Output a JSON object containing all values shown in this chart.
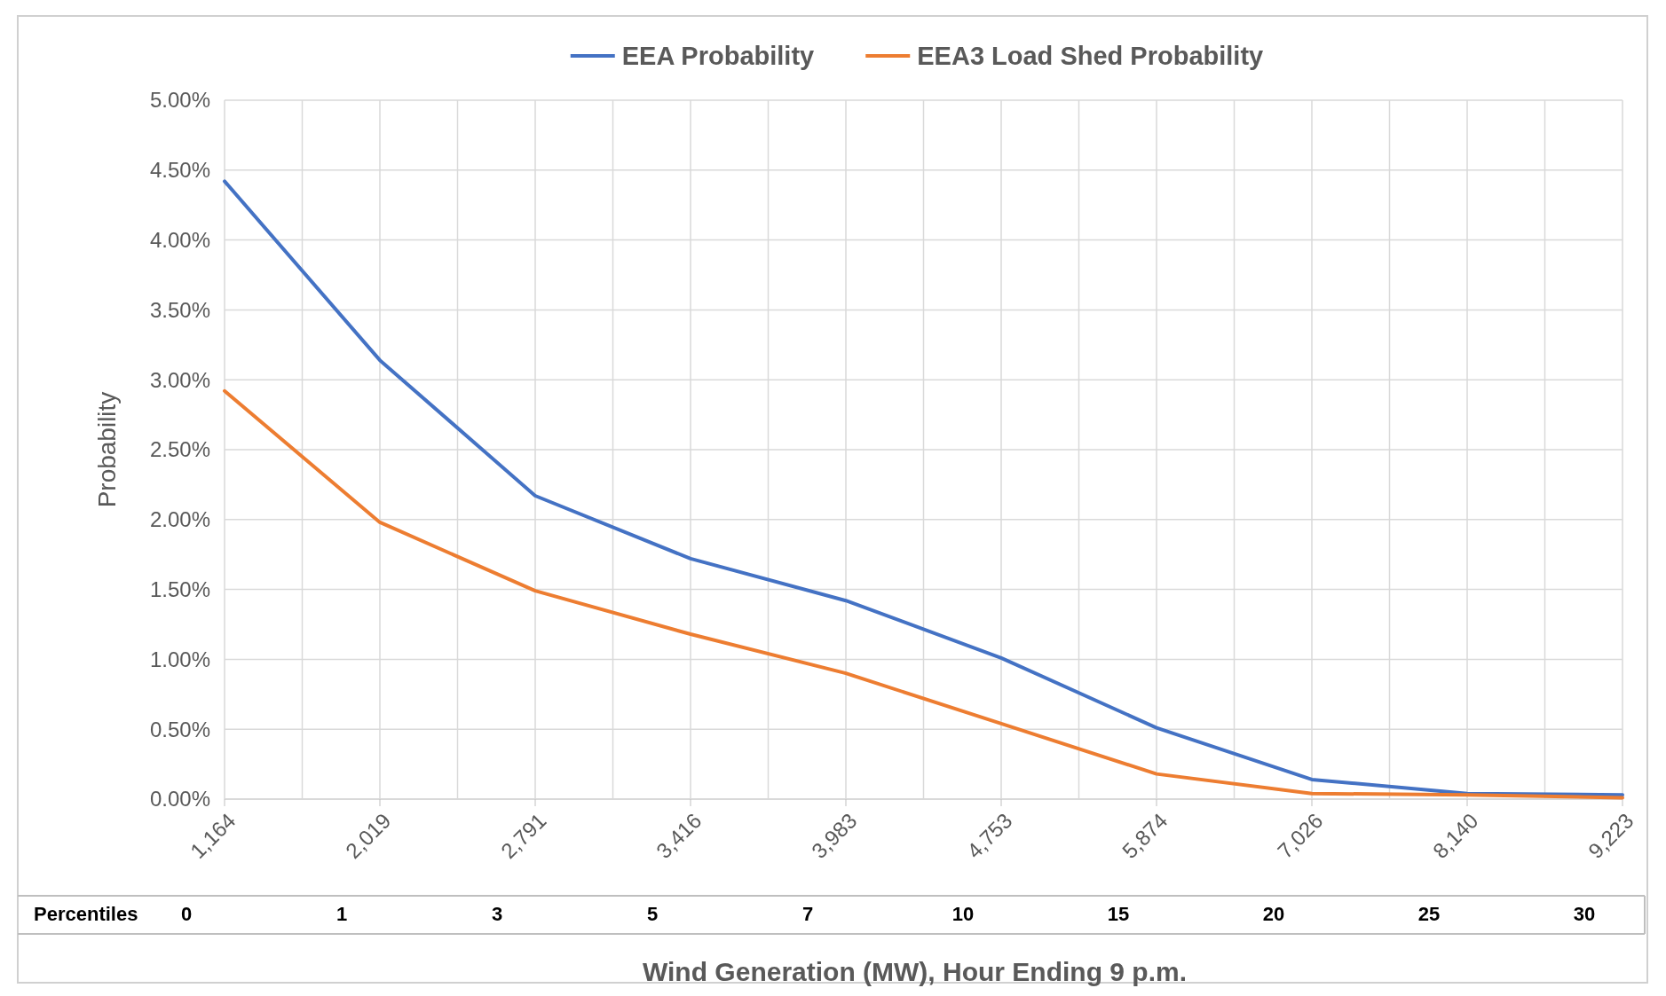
{
  "chart_data": {
    "type": "line",
    "xlabel": "Wind Generation (MW), Hour Ending 9 p.m.",
    "ylabel": "Probability",
    "categories": [
      "1,164",
      "2,019",
      "2,791",
      "3,416",
      "3,983",
      "4,753",
      "5,874",
      "7,026",
      "8,140",
      "9,223"
    ],
    "series": [
      {
        "name": "EEA Probability",
        "color": "#4472c4",
        "values": [
          4.42,
          3.14,
          2.17,
          1.72,
          1.42,
          1.01,
          0.51,
          0.14,
          0.04,
          0.03
        ]
      },
      {
        "name": "EEA3 Load Shed Probability",
        "color": "#ed7d31",
        "values": [
          2.92,
          1.98,
          1.49,
          1.18,
          0.9,
          0.54,
          0.18,
          0.04,
          0.03,
          0.01
        ]
      }
    ],
    "ylim": [
      0,
      5
    ],
    "yticks": [
      {
        "value": 0,
        "label": "0.00%"
      },
      {
        "value": 0.5,
        "label": "0.50%"
      },
      {
        "value": 1,
        "label": "1.00%"
      },
      {
        "value": 1.5,
        "label": "1.50%"
      },
      {
        "value": 2,
        "label": "2.00%"
      },
      {
        "value": 2.5,
        "label": "2.50%"
      },
      {
        "value": 3,
        "label": "3.00%"
      },
      {
        "value": 3.5,
        "label": "3.50%"
      },
      {
        "value": 4,
        "label": "4.00%"
      },
      {
        "value": 4.5,
        "label": "4.50%"
      },
      {
        "value": 5,
        "label": "5.00%"
      }
    ],
    "annotations": [
      "Percentiles",
      "0",
      "1",
      "3",
      "5",
      "7",
      "10",
      "15",
      "20",
      "25",
      "30"
    ],
    "grid": true,
    "legend": "top",
    "marker": "none",
    "line_style": "solid"
  }
}
